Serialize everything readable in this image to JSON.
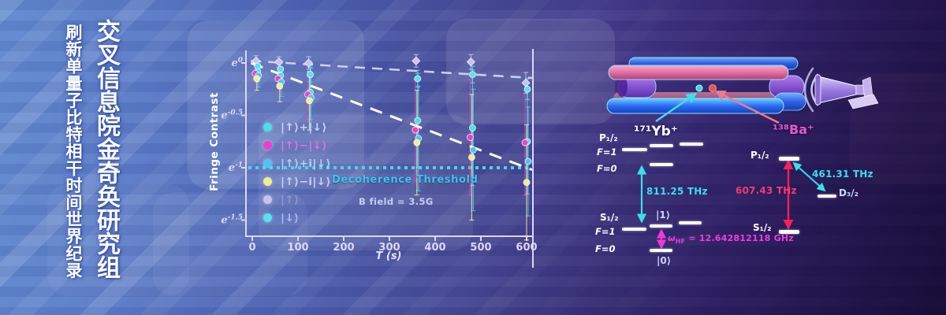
{
  "banner": {
    "title_vertical": "交叉信息院金奇奂研究组",
    "subtitle_vertical": "刷新单量子比特相干时间世界纪录"
  },
  "chart_data": {
    "type": "scatter",
    "title": "",
    "xlabel": "T (s)",
    "ylabel": "Fringe Contrast",
    "x_ticks": [
      0,
      100,
      200,
      300,
      400,
      500,
      600
    ],
    "y_tick_base": "e",
    "y_tick_exponents": [
      "0",
      "-0.5",
      "-1",
      "-1.5"
    ],
    "xlim": [
      0,
      620
    ],
    "ylim_ln": [
      -1.65,
      0.1
    ],
    "grid": false,
    "legend_position": "center-left",
    "x": [
      10,
      60,
      125,
      360,
      480,
      600
    ],
    "series": [
      {
        "name": "|↑⟩+|↓⟩",
        "color": "#44e2e6",
        "text_color": "#ccd4ff",
        "marker": "circle",
        "ln_values": [
          -0.08,
          -0.12,
          -0.28,
          -0.55,
          -0.62,
          -0.75
        ],
        "errors": [
          0.1,
          0.12,
          0.26,
          0.45,
          0.55,
          0.5
        ]
      },
      {
        "name": "|↑⟩−|↓⟩",
        "color": "#ef3fca",
        "text_color": "#ea6ee0",
        "marker": "circle",
        "ln_values": [
          -0.1,
          -0.15,
          -0.3,
          -0.64,
          -0.71,
          -0.76
        ],
        "errors": [
          0.1,
          0.13,
          0.26,
          0.48,
          0.55,
          0.5
        ]
      },
      {
        "name": "|↑⟩+i|↓⟩",
        "color": "#4fc3f2",
        "text_color": "#a9d4f8",
        "marker": "circle",
        "ln_values": [
          -0.12,
          -0.18,
          -0.33,
          -0.72,
          -0.83,
          -0.94
        ],
        "errors": [
          0.11,
          0.14,
          0.28,
          0.5,
          0.58,
          0.52
        ]
      },
      {
        "name": "|↑⟩−i|↓⟩",
        "color": "#f2ee8e",
        "text_color": "#c8d2f6",
        "marker": "circle",
        "ln_values": [
          -0.15,
          -0.22,
          -0.36,
          -0.76,
          -0.9,
          -1.14
        ],
        "errors": [
          0.11,
          0.15,
          0.28,
          0.5,
          0.6,
          0.55
        ]
      },
      {
        "name": "|↑⟩",
        "color": "#c9c1ef",
        "text_color": "#8f96cf",
        "marker": "diamond",
        "ln_values": [
          0.02,
          0.01,
          0.0,
          0.02,
          0.01,
          -0.19
        ],
        "errors": [
          0.05,
          0.05,
          0.06,
          0.06,
          0.07,
          0.1
        ]
      },
      {
        "name": "|↓⟩",
        "color": "#54e4ee",
        "text_color": "#aabdf0",
        "marker": "circle",
        "ln_values": [
          -0.03,
          -0.06,
          -0.11,
          -0.15,
          -0.11,
          -0.25
        ],
        "errors": [
          0.05,
          0.06,
          0.07,
          0.08,
          0.08,
          0.1
        ]
      }
    ],
    "fits": [
      {
        "ln_at_0": 0.02,
        "ln_at_600": -0.14,
        "color": "#cdd0f8",
        "style": "dashed",
        "width": 2.5
      },
      {
        "ln_at_0": 0.0,
        "ln_at_600": -1.0,
        "color": "#ffffff",
        "style": "dashed",
        "width": 3
      }
    ],
    "threshold": {
      "ln": -1.0,
      "label": "Decoherence Threshold",
      "color": "#40d8f0"
    },
    "annotation": "B field = 3.5G"
  },
  "trap": {
    "yb_label": "¹⁷¹Yb⁺",
    "ba_label": "¹³⁸Ba⁺"
  },
  "yb_diagram": {
    "p_label": "P₁/₂",
    "p_f1": "F=1",
    "p_f0": "F=0",
    "s_label": "S₁/₂",
    "s_f1": "F=1",
    "s_f0": "F=0",
    "optical": "811.25 THz",
    "ket1": "|1⟩",
    "ket0": "|0⟩",
    "omega": "ω",
    "omega_sub": "HF",
    "hf_value": "= 12.642812118 GHz"
  },
  "ba_diagram": {
    "p_label": "P₁/₂",
    "s_label": "S₁/₂",
    "d_label": "D₃/₂",
    "sp_freq": "607.43 THz",
    "pd_freq": "461.31 THz"
  }
}
